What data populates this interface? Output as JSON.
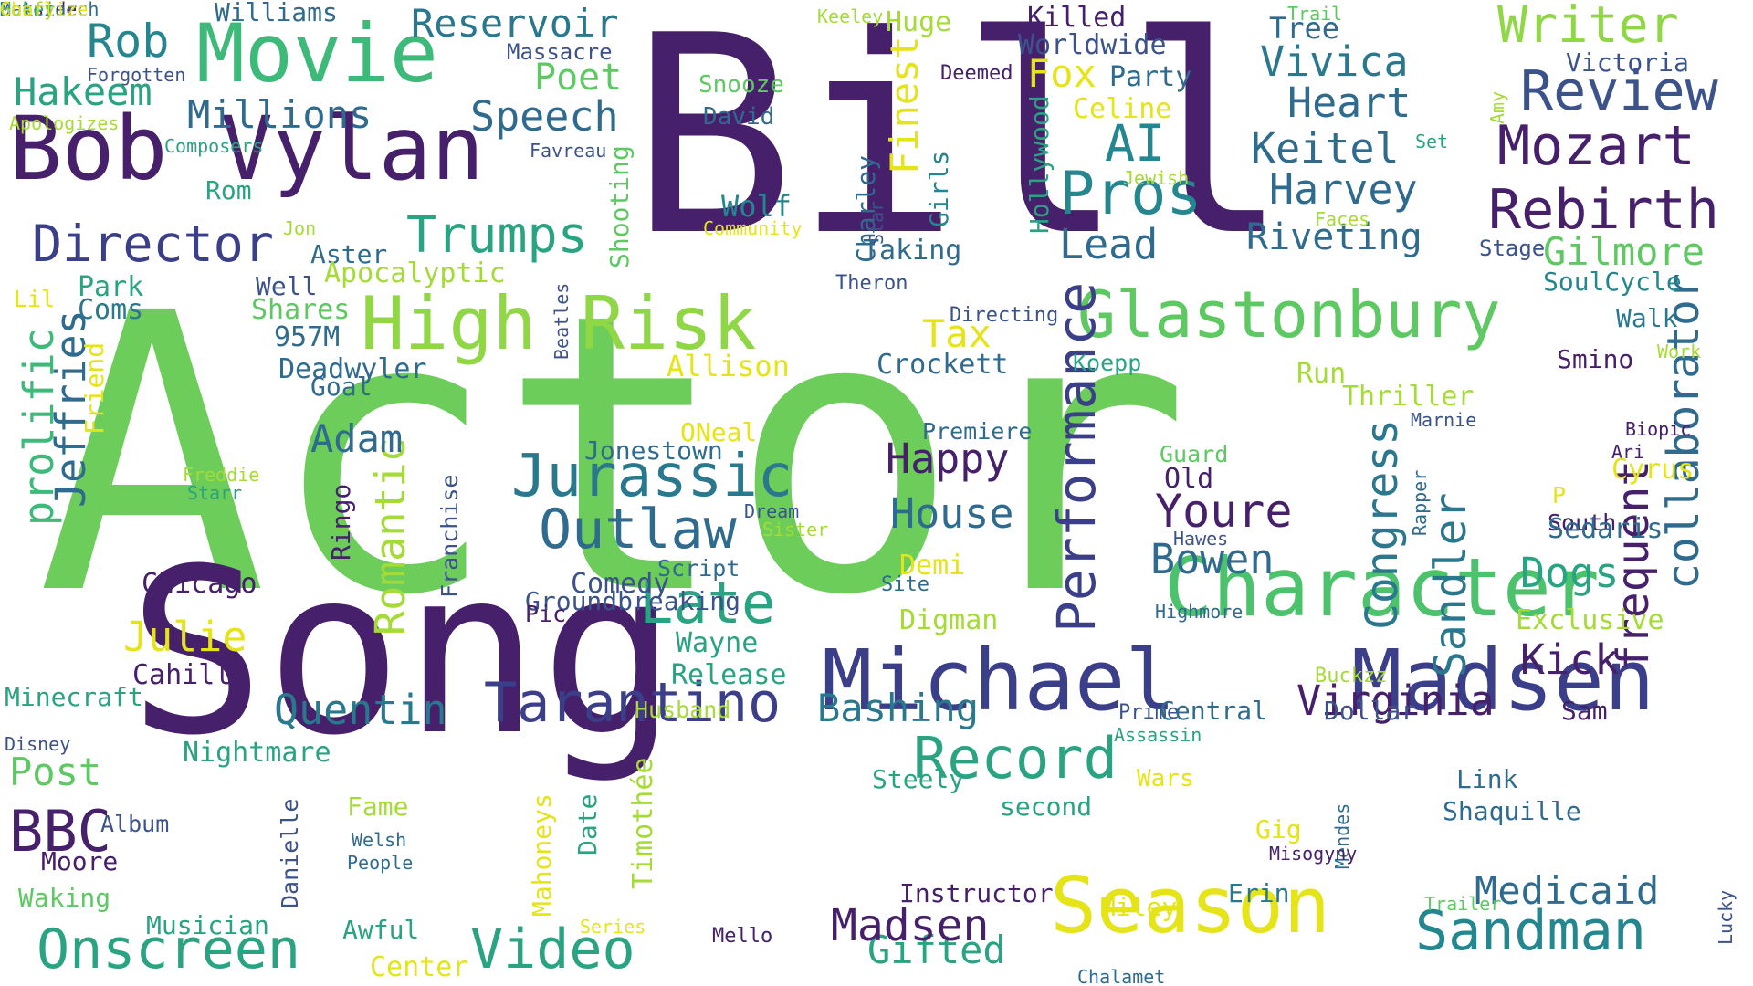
{
  "palette": {
    "dark_purple": "#46206b",
    "indigo": "#3b3f8a",
    "blue": "#2f6b8e",
    "teal": "#24868e",
    "green_teal": "#2aa382",
    "green": "#5ec962",
    "light_green": "#a5db36",
    "yellow": "#f0e11d",
    "background": "#ffffff"
  },
  "words": [
    {
      "text": "Actor",
      "color": "#6ccd5a"
    },
    {
      "text": "Bill",
      "color": "#46206b"
    },
    {
      "text": "Song",
      "color": "#46206b"
    },
    {
      "text": "Bob Vylan",
      "color": "#46206b"
    },
    {
      "text": "Movie",
      "color": "#3db97a"
    },
    {
      "text": "Michael",
      "color": "#3b3f8a"
    },
    {
      "text": "Madsen",
      "color": "#3b3f8a"
    },
    {
      "text": "Character",
      "color": "#4cc26c"
    },
    {
      "text": "Season",
      "color": "#e5e419"
    },
    {
      "text": "High Risk",
      "color": "#8fd744"
    },
    {
      "text": "Glastonbury",
      "color": "#5ec962"
    },
    {
      "text": "Tarantino",
      "color": "#3b3f8a"
    },
    {
      "text": "Jurassic",
      "color": "#2a788e"
    },
    {
      "text": "Outlaw",
      "color": "#2f6b8e"
    },
    {
      "text": "Director",
      "color": "#3b3f8a"
    },
    {
      "text": "Trumps",
      "color": "#2aa382"
    },
    {
      "text": "Performance",
      "color": "#3b3f8a"
    },
    {
      "text": "Pros",
      "color": "#24868e"
    },
    {
      "text": "Rebirth",
      "color": "#46206b"
    },
    {
      "text": "Mozart",
      "color": "#46206b"
    },
    {
      "text": "Review",
      "color": "#3b528b"
    },
    {
      "text": "Writer",
      "color": "#8fd744"
    },
    {
      "text": "Record",
      "color": "#2aa382"
    },
    {
      "text": "Sandman",
      "color": "#24868e"
    },
    {
      "text": "Onscreen",
      "color": "#2aa382"
    },
    {
      "text": "Video",
      "color": "#2aa382"
    },
    {
      "text": "Late",
      "color": "#2aa382"
    },
    {
      "text": "Medicaid",
      "color": "#2f6b8e"
    },
    {
      "text": "Gifted",
      "color": "#2aa382"
    },
    {
      "text": "Madsen",
      "color": "#46206b"
    },
    {
      "text": "Quentin",
      "color": "#2a788e"
    },
    {
      "text": "Virginia",
      "color": "#46206b"
    },
    {
      "text": "Congress",
      "color": "#2a788e"
    },
    {
      "text": "Sandler",
      "color": "#2a788e"
    },
    {
      "text": "frequent",
      "color": "#46206b"
    },
    {
      "text": "collaborator",
      "color": "#2f6b8e"
    },
    {
      "text": "prolific",
      "color": "#3db97a"
    },
    {
      "text": "Jeffries",
      "color": "#2f6b8e"
    },
    {
      "text": "Romantic",
      "color": "#a5db36"
    },
    {
      "text": "Youre",
      "color": "#46206b"
    },
    {
      "text": "Bowen",
      "color": "#2f6b8e"
    },
    {
      "text": "House",
      "color": "#2f6b8e"
    },
    {
      "text": "Happy",
      "color": "#46206b"
    },
    {
      "text": "Dogs",
      "color": "#2aa382"
    },
    {
      "text": "Kick",
      "color": "#46206b"
    },
    {
      "text": "Keitel",
      "color": "#2f6b8e"
    },
    {
      "text": "Harvey",
      "color": "#2f6b8e"
    },
    {
      "text": "Heart",
      "color": "#2f6b8e"
    },
    {
      "text": "Vivica",
      "color": "#2a788e"
    },
    {
      "text": "Riveting",
      "color": "#2f6b8e"
    },
    {
      "text": "Gilmore",
      "color": "#5ec962"
    },
    {
      "text": "Reservoir",
      "color": "#2a788e"
    },
    {
      "text": "Rob",
      "color": "#24868e"
    },
    {
      "text": "Hakeem",
      "color": "#2aa382"
    },
    {
      "text": "Millions",
      "color": "#2f6b8e"
    },
    {
      "text": "Speech",
      "color": "#2f6b8e"
    },
    {
      "text": "Poet",
      "color": "#5ec962"
    },
    {
      "text": "AI",
      "color": "#24868e"
    },
    {
      "text": "Lead",
      "color": "#2f6b8e"
    },
    {
      "text": "Fox",
      "color": "#e5e419"
    },
    {
      "text": "Finest",
      "color": "#e5e419"
    },
    {
      "text": "Adam",
      "color": "#2f6b8e"
    },
    {
      "text": "Julie",
      "color": "#e5e419"
    },
    {
      "text": "BBC",
      "color": "#46206b"
    },
    {
      "text": "Post",
      "color": "#5ec962"
    },
    {
      "text": "Bashing",
      "color": "#2a788e"
    },
    {
      "text": "Tax",
      "color": "#e5e419"
    },
    {
      "text": "Killed",
      "color": "#46206b"
    },
    {
      "text": "Worldwide",
      "color": "#3b528b"
    },
    {
      "text": "Party",
      "color": "#2f6b8e"
    },
    {
      "text": "Celine",
      "color": "#e5e419"
    },
    {
      "text": "Huge",
      "color": "#a5db36"
    },
    {
      "text": "Victoria",
      "color": "#3b528b"
    },
    {
      "text": "Tree",
      "color": "#2f6b8e"
    },
    {
      "text": "Trail",
      "color": "#5ec962"
    },
    {
      "text": "Keeley",
      "color": "#a5db36"
    },
    {
      "text": "Williams",
      "color": "#2f6b8e"
    },
    {
      "text": "Massacre",
      "color": "#3b528b"
    },
    {
      "text": "Forgotten",
      "color": "#3b528b"
    },
    {
      "text": "Apologizes",
      "color": "#a5db36"
    },
    {
      "text": "Composers",
      "color": "#2aa382"
    },
    {
      "text": "Favreau",
      "color": "#3b528b"
    },
    {
      "text": "Rom",
      "color": "#2aa382"
    },
    {
      "text": "Snooze",
      "color": "#5ec962"
    },
    {
      "text": "David",
      "color": "#2f6b8e"
    },
    {
      "text": "Deemed",
      "color": "#46206b"
    },
    {
      "text": "Charley",
      "color": "#2f6b8e"
    },
    {
      "text": "Star",
      "color": "#3b528b"
    },
    {
      "text": "Girls",
      "color": "#24868e"
    },
    {
      "text": "Hollywood",
      "color": "#2aa382"
    },
    {
      "text": "Shooting",
      "color": "#5ec962"
    },
    {
      "text": "Wolf",
      "color": "#24868e"
    },
    {
      "text": "Community",
      "color": "#e5e419"
    },
    {
      "text": "Taking",
      "color": "#2f6b8e"
    },
    {
      "text": "Theron",
      "color": "#3b528b"
    },
    {
      "text": "Directing",
      "color": "#3b528b"
    },
    {
      "text": "Jewish",
      "color": "#a5db36"
    },
    {
      "text": "Faces",
      "color": "#a5db36"
    },
    {
      "text": "Set",
      "color": "#2aa382"
    },
    {
      "text": "Stage",
      "color": "#3b528b"
    },
    {
      "text": "SoulCycle",
      "color": "#24868e"
    },
    {
      "text": "Walk",
      "color": "#2a788e"
    },
    {
      "text": "Work",
      "color": "#a5db36"
    },
    {
      "text": "Smino",
      "color": "#46206b"
    },
    {
      "text": "Amy",
      "color": "#a5db36"
    },
    {
      "text": "Jon",
      "color": "#a5db36"
    },
    {
      "text": "Aster",
      "color": "#2f6b8e"
    },
    {
      "text": "Apocalyptic",
      "color": "#a5db36"
    },
    {
      "text": "Well",
      "color": "#3b528b"
    },
    {
      "text": "Lil",
      "color": "#e5e419"
    },
    {
      "text": "Park",
      "color": "#2aa382"
    },
    {
      "text": "Coms",
      "color": "#2a788e"
    },
    {
      "text": "Shares",
      "color": "#5ec962"
    },
    {
      "text": "957M",
      "color": "#2f6b8e"
    },
    {
      "text": "Beatles",
      "color": "#3b528b"
    },
    {
      "text": "Deadwyler",
      "color": "#2f6b8e"
    },
    {
      "text": "Allison",
      "color": "#e5e419"
    },
    {
      "text": "Crockett",
      "color": "#2f6b8e"
    },
    {
      "text": "Koepp",
      "color": "#2aa382"
    },
    {
      "text": "Run",
      "color": "#a5db36"
    },
    {
      "text": "Thriller",
      "color": "#a5db36"
    },
    {
      "text": "Marnie",
      "color": "#3b528b"
    },
    {
      "text": "Ari",
      "color": "#46206b"
    },
    {
      "text": "Biopic",
      "color": "#46206b"
    },
    {
      "text": "Friend",
      "color": "#e5e419"
    },
    {
      "text": "Goal",
      "color": "#2f6b8e"
    },
    {
      "text": "ONeal",
      "color": "#e5e419"
    },
    {
      "text": "Jonestown",
      "color": "#2f6b8e"
    },
    {
      "text": "Premiere",
      "color": "#2f6b8e"
    },
    {
      "text": "Guard",
      "color": "#5ec962"
    },
    {
      "text": "Old",
      "color": "#46206b"
    },
    {
      "text": "Cyrus",
      "color": "#e5e419"
    },
    {
      "text": "P",
      "color": "#e5e419"
    },
    {
      "text": "South",
      "color": "#46206b"
    },
    {
      "text": "Sedaris",
      "color": "#2f6b8e"
    },
    {
      "text": "Rapper",
      "color": "#2f6b8e"
    },
    {
      "text": "Freddie",
      "color": "#a5db36"
    },
    {
      "text": "Starr",
      "color": "#2aa382"
    },
    {
      "text": "Ringo",
      "color": "#46206b"
    },
    {
      "text": "Franchise",
      "color": "#3b528b"
    },
    {
      "text": "Dream",
      "color": "#3b528b"
    },
    {
      "text": "Sister",
      "color": "#a5db36"
    },
    {
      "text": "Hawes",
      "color": "#3b528b"
    },
    {
      "text": "Highmore",
      "color": "#2f6b8e"
    },
    {
      "text": "Chicago",
      "color": "#46206b"
    },
    {
      "text": "Script",
      "color": "#2f6b8e"
    },
    {
      "text": "Comedy",
      "color": "#3b528b"
    },
    {
      "text": "Groundbreaking",
      "color": "#3b528b"
    },
    {
      "text": "Pic",
      "color": "#46206b"
    },
    {
      "text": "Demi",
      "color": "#e5e419"
    },
    {
      "text": "Site",
      "color": "#2f6b8e"
    },
    {
      "text": "Digman",
      "color": "#a5db36"
    },
    {
      "text": "Exclusive",
      "color": "#a5db36"
    },
    {
      "text": "Wayne",
      "color": "#2aa382"
    },
    {
      "text": "Release",
      "color": "#2aa382"
    },
    {
      "text": "Cahills",
      "color": "#46206b"
    },
    {
      "text": "Minecraft",
      "color": "#2aa382"
    },
    {
      "text": "Disney",
      "color": "#3b528b"
    },
    {
      "text": "Nightmare",
      "color": "#2aa382"
    },
    {
      "text": "Buckzz",
      "color": "#a5db36"
    },
    {
      "text": "Prime",
      "color": "#3b528b"
    },
    {
      "text": "Central",
      "color": "#2f6b8e"
    },
    {
      "text": "Assassin",
      "color": "#2aa382"
    },
    {
      "text": "Sam",
      "color": "#46206b"
    },
    {
      "text": "Dollar",
      "color": "#3b528b"
    },
    {
      "text": "Husband",
      "color": "#a5db36"
    },
    {
      "text": "Wars",
      "color": "#e5e419"
    },
    {
      "text": "Steely",
      "color": "#2aa382"
    },
    {
      "text": "second",
      "color": "#2aa382"
    },
    {
      "text": "Shaquille",
      "color": "#2f6b8e"
    },
    {
      "text": "Link",
      "color": "#2f6b8e"
    },
    {
      "text": "Album",
      "color": "#3b528b"
    },
    {
      "text": "Danielle",
      "color": "#3b528b"
    },
    {
      "text": "Fame",
      "color": "#a5db36"
    },
    {
      "text": "Moore",
      "color": "#46206b"
    },
    {
      "text": "Welsh",
      "color": "#2f6b8e"
    },
    {
      "text": "People",
      "color": "#2f6b8e"
    },
    {
      "text": "Mahoneys",
      "color": "#e5e419"
    },
    {
      "text": "Date",
      "color": "#2aa382"
    },
    {
      "text": "Timothée",
      "color": "#a5db36"
    },
    {
      "text": "Gig",
      "color": "#e5e419"
    },
    {
      "text": "Mendes",
      "color": "#2f6b8e"
    },
    {
      "text": "Misogyny",
      "color": "#46206b"
    },
    {
      "text": "Waking",
      "color": "#5ec962"
    },
    {
      "text": "Musician",
      "color": "#2aa382"
    },
    {
      "text": "Awful",
      "color": "#2aa382"
    },
    {
      "text": "Center",
      "color": "#e5e419"
    },
    {
      "text": "Series",
      "color": "#e5e419"
    },
    {
      "text": "Mello",
      "color": "#46206b"
    },
    {
      "text": "Instructor",
      "color": "#46206b"
    },
    {
      "text": "Miley",
      "color": "#e5e419"
    },
    {
      "text": "Erin",
      "color": "#2a788e"
    },
    {
      "text": "Trailer",
      "color": "#5ec962"
    },
    {
      "text": "Lucky",
      "color": "#3b528b"
    },
    {
      "text": "Chalamet",
      "color": "#2f6b8e"
    },
    {
      "text": "Outside",
      "color": "#46206b"
    },
    {
      "text": "Matriarch",
      "color": "#2f6b8e"
    },
    {
      "text": "Poker",
      "color": "#2aa382"
    },
    {
      "text": "Goofy",
      "color": "#a5db36"
    },
    {
      "text": "Charlize",
      "color": "#e5e419"
    }
  ]
}
